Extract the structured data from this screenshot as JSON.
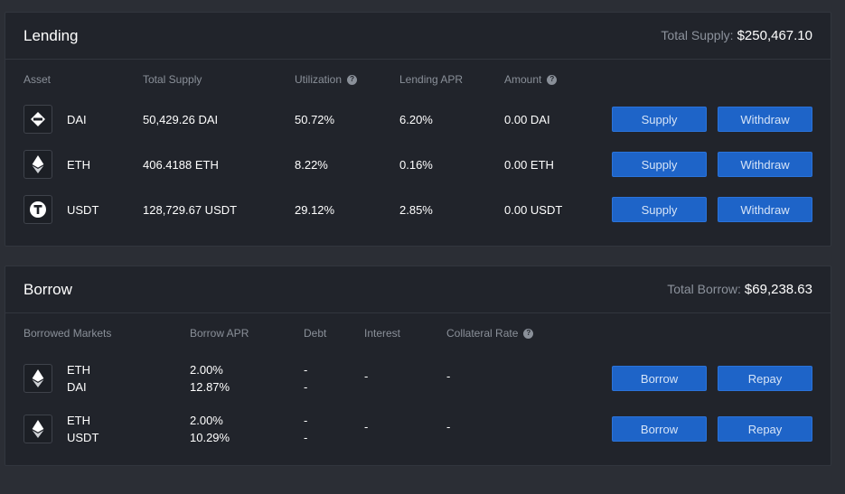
{
  "lending": {
    "title": "Lending",
    "total_label": "Total Supply:",
    "total_value": "$250,467.10",
    "columns": {
      "asset": "Asset",
      "total_supply": "Total Supply",
      "utilization": "Utilization",
      "lending_apr": "Lending APR",
      "amount": "Amount"
    },
    "rows": [
      {
        "icon": "dai-icon",
        "asset": "DAI",
        "total_supply": "50,429.26 DAI",
        "utilization": "50.72%",
        "lending_apr": "6.20%",
        "amount": "0.00 DAI",
        "supply_label": "Supply",
        "withdraw_label": "Withdraw"
      },
      {
        "icon": "eth-icon",
        "asset": "ETH",
        "total_supply": "406.4188 ETH",
        "utilization": "8.22%",
        "lending_apr": "0.16%",
        "amount": "0.00 ETH",
        "supply_label": "Supply",
        "withdraw_label": "Withdraw"
      },
      {
        "icon": "usdt-icon",
        "asset": "USDT",
        "total_supply": "128,729.67 USDT",
        "utilization": "29.12%",
        "lending_apr": "2.85%",
        "amount": "0.00 USDT",
        "supply_label": "Supply",
        "withdraw_label": "Withdraw"
      }
    ]
  },
  "borrow": {
    "title": "Borrow",
    "total_label": "Total Borrow:",
    "total_value": "$69,238.63",
    "columns": {
      "borrowed_markets": "Borrowed Markets",
      "borrow_apr": "Borrow APR",
      "debt": "Debt",
      "interest": "Interest",
      "collateral_rate": "Collateral Rate"
    },
    "rows": [
      {
        "icon": "eth-icon",
        "asset_1": "ETH",
        "asset_2": "DAI",
        "apr_1": "2.00%",
        "apr_2": "12.87%",
        "debt_1": "-",
        "debt_2": "-",
        "interest": "-",
        "collateral_rate": "-",
        "borrow_label": "Borrow",
        "repay_label": "Repay"
      },
      {
        "icon": "eth-icon",
        "asset_1": "ETH",
        "asset_2": "USDT",
        "apr_1": "2.00%",
        "apr_2": "10.29%",
        "debt_1": "-",
        "debt_2": "-",
        "interest": "-",
        "collateral_rate": "-",
        "borrow_label": "Borrow",
        "repay_label": "Repay"
      }
    ]
  },
  "icons": {
    "help": "?"
  },
  "colors": {
    "accent": "#1e64c8",
    "panel_bg": "#21242b",
    "page_bg": "#2b2e35"
  }
}
